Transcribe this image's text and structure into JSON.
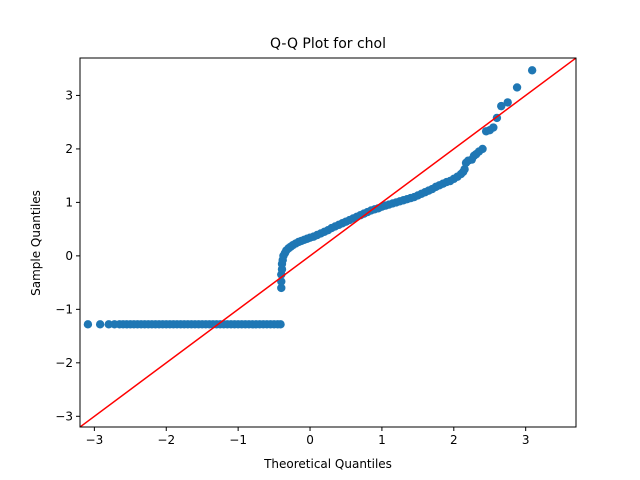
{
  "chart_data": {
    "type": "scatter",
    "title": "Q-Q Plot for chol",
    "xlabel": "Theoretical Quantiles",
    "ylabel": "Sample Quantiles",
    "xlim": [
      -3.2,
      3.7
    ],
    "ylim": [
      -3.2,
      3.7
    ],
    "xticks": [
      -3,
      -2,
      -1,
      0,
      1,
      2,
      3
    ],
    "yticks": [
      -3,
      -2,
      -1,
      0,
      1,
      2,
      3
    ],
    "grid": false,
    "colors": {
      "points": "#1f77b4",
      "reference_line": "#ff0000"
    },
    "reference_line": {
      "slope": 1,
      "intercept": 0
    },
    "series": [
      {
        "marker": "circle",
        "points": [
          [
            -3.09,
            -1.28
          ],
          [
            -2.92,
            -1.28
          ],
          [
            -2.8,
            -1.28
          ],
          [
            -2.72,
            -1.28
          ],
          [
            -2.65,
            -1.28
          ],
          [
            -2.6,
            -1.28
          ],
          [
            -2.55,
            -1.28
          ],
          [
            -2.5,
            -1.28
          ],
          [
            -2.45,
            -1.28
          ],
          [
            -2.4,
            -1.28
          ],
          [
            -2.35,
            -1.28
          ],
          [
            -2.3,
            -1.28
          ],
          [
            -2.25,
            -1.28
          ],
          [
            -2.2,
            -1.28
          ],
          [
            -2.15,
            -1.28
          ],
          [
            -2.1,
            -1.28
          ],
          [
            -2.05,
            -1.28
          ],
          [
            -2.0,
            -1.28
          ],
          [
            -1.95,
            -1.28
          ],
          [
            -1.9,
            -1.28
          ],
          [
            -1.85,
            -1.28
          ],
          [
            -1.8,
            -1.28
          ],
          [
            -1.75,
            -1.28
          ],
          [
            -1.7,
            -1.28
          ],
          [
            -1.65,
            -1.28
          ],
          [
            -1.6,
            -1.28
          ],
          [
            -1.55,
            -1.28
          ],
          [
            -1.5,
            -1.28
          ],
          [
            -1.45,
            -1.28
          ],
          [
            -1.4,
            -1.28
          ],
          [
            -1.35,
            -1.28
          ],
          [
            -1.3,
            -1.28
          ],
          [
            -1.25,
            -1.28
          ],
          [
            -1.2,
            -1.28
          ],
          [
            -1.15,
            -1.28
          ],
          [
            -1.1,
            -1.28
          ],
          [
            -1.05,
            -1.28
          ],
          [
            -1.0,
            -1.28
          ],
          [
            -0.95,
            -1.28
          ],
          [
            -0.9,
            -1.28
          ],
          [
            -0.85,
            -1.28
          ],
          [
            -0.8,
            -1.28
          ],
          [
            -0.75,
            -1.28
          ],
          [
            -0.7,
            -1.28
          ],
          [
            -0.65,
            -1.28
          ],
          [
            -0.6,
            -1.28
          ],
          [
            -0.55,
            -1.28
          ],
          [
            -0.5,
            -1.28
          ],
          [
            -0.45,
            -1.28
          ],
          [
            -0.41,
            -1.28
          ],
          [
            -0.4,
            -0.6
          ],
          [
            -0.4,
            -0.48
          ],
          [
            -0.4,
            -0.35
          ],
          [
            -0.39,
            -0.25
          ],
          [
            -0.39,
            -0.15
          ],
          [
            -0.38,
            -0.08
          ],
          [
            -0.37,
            0.0
          ],
          [
            -0.35,
            0.05
          ],
          [
            -0.33,
            0.1
          ],
          [
            -0.3,
            0.14
          ],
          [
            -0.27,
            0.17
          ],
          [
            -0.24,
            0.2
          ],
          [
            -0.2,
            0.23
          ],
          [
            -0.16,
            0.26
          ],
          [
            -0.12,
            0.28
          ],
          [
            -0.08,
            0.3
          ],
          [
            -0.04,
            0.32
          ],
          [
            0.0,
            0.34
          ],
          [
            0.05,
            0.36
          ],
          [
            0.1,
            0.39
          ],
          [
            0.15,
            0.42
          ],
          [
            0.2,
            0.45
          ],
          [
            0.25,
            0.48
          ],
          [
            0.3,
            0.52
          ],
          [
            0.35,
            0.55
          ],
          [
            0.4,
            0.58
          ],
          [
            0.45,
            0.61
          ],
          [
            0.5,
            0.64
          ],
          [
            0.55,
            0.67
          ],
          [
            0.6,
            0.7
          ],
          [
            0.65,
            0.73
          ],
          [
            0.7,
            0.76
          ],
          [
            0.75,
            0.79
          ],
          [
            0.8,
            0.82
          ],
          [
            0.85,
            0.85
          ],
          [
            0.9,
            0.87
          ],
          [
            0.95,
            0.89
          ],
          [
            1.0,
            0.92
          ],
          [
            1.05,
            0.94
          ],
          [
            1.1,
            0.96
          ],
          [
            1.15,
            0.98
          ],
          [
            1.2,
            1.0
          ],
          [
            1.25,
            1.02
          ],
          [
            1.3,
            1.04
          ],
          [
            1.35,
            1.06
          ],
          [
            1.4,
            1.08
          ],
          [
            1.45,
            1.1
          ],
          [
            1.5,
            1.13
          ],
          [
            1.55,
            1.16
          ],
          [
            1.6,
            1.19
          ],
          [
            1.65,
            1.22
          ],
          [
            1.7,
            1.25
          ],
          [
            1.75,
            1.29
          ],
          [
            1.8,
            1.32
          ],
          [
            1.85,
            1.35
          ],
          [
            1.9,
            1.38
          ],
          [
            1.95,
            1.4
          ],
          [
            2.0,
            1.44
          ],
          [
            2.05,
            1.48
          ],
          [
            2.1,
            1.53
          ],
          [
            2.13,
            1.57
          ],
          [
            2.15,
            1.62
          ],
          [
            2.17,
            1.74
          ],
          [
            2.2,
            1.78
          ],
          [
            2.25,
            1.8
          ],
          [
            2.28,
            1.87
          ],
          [
            2.31,
            1.9
          ],
          [
            2.35,
            1.95
          ],
          [
            2.4,
            2.0
          ],
          [
            2.45,
            2.33
          ],
          [
            2.5,
            2.35
          ],
          [
            2.55,
            2.4
          ],
          [
            2.6,
            2.58
          ],
          [
            2.66,
            2.8
          ],
          [
            2.75,
            2.87
          ],
          [
            2.88,
            3.15
          ],
          [
            3.09,
            3.47
          ]
        ]
      }
    ]
  }
}
